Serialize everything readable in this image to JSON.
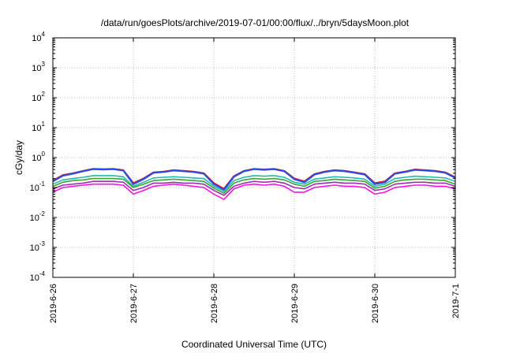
{
  "chart_data": {
    "type": "line",
    "title": "/data/run/goesPlots/archive/2019-07-01/00:00/flux/../bryn/5daysMoon.plot",
    "xlabel": "Coordinated Universal Time (UTC)",
    "ylabel": "cGy/day",
    "y_scale": "log",
    "ylim": [
      0.0001,
      10000
    ],
    "y_ticks": [
      {
        "value": 0.0001,
        "base": "10",
        "exp": "-4"
      },
      {
        "value": 0.001,
        "base": "10",
        "exp": "-3"
      },
      {
        "value": 0.01,
        "base": "10",
        "exp": "-2"
      },
      {
        "value": 0.1,
        "base": "10",
        "exp": "-1"
      },
      {
        "value": 1,
        "base": "10",
        "exp": "0"
      },
      {
        "value": 10,
        "base": "10",
        "exp": "1"
      },
      {
        "value": 100,
        "base": "10",
        "exp": "2"
      },
      {
        "value": 1000,
        "base": "10",
        "exp": "3"
      },
      {
        "value": 10000,
        "base": "10",
        "exp": "4"
      }
    ],
    "xlim": [
      "2019-06-26",
      "2019-07-01"
    ],
    "x_ticks": [
      "2019-6-26",
      "2019-6-27",
      "2019-6-28",
      "2019-6-29",
      "2019-6-30",
      "2019-7-1"
    ],
    "grid": true,
    "x": [
      "2019-06-26 00:00",
      "2019-06-26 03:00",
      "2019-06-26 06:00",
      "2019-06-26 09:00",
      "2019-06-26 12:00",
      "2019-06-26 15:00",
      "2019-06-26 18:00",
      "2019-06-26 21:00",
      "2019-06-27 00:00",
      "2019-06-27 03:00",
      "2019-06-27 06:00",
      "2019-06-27 09:00",
      "2019-06-27 12:00",
      "2019-06-27 15:00",
      "2019-06-27 18:00",
      "2019-06-27 21:00",
      "2019-06-28 00:00",
      "2019-06-28 03:00",
      "2019-06-28 06:00",
      "2019-06-28 09:00",
      "2019-06-28 12:00",
      "2019-06-28 15:00",
      "2019-06-28 18:00",
      "2019-06-28 21:00",
      "2019-06-29 00:00",
      "2019-06-29 03:00",
      "2019-06-29 06:00",
      "2019-06-29 09:00",
      "2019-06-29 12:00",
      "2019-06-29 15:00",
      "2019-06-29 18:00",
      "2019-06-29 21:00",
      "2019-06-30 00:00",
      "2019-06-30 03:00",
      "2019-06-30 06:00",
      "2019-06-30 09:00",
      "2019-06-30 12:00",
      "2019-06-30 15:00",
      "2019-06-30 18:00",
      "2019-06-30 21:00",
      "2019-07-01 00:00"
    ],
    "series": [
      {
        "color": "#e8141c",
        "values": [
          0.17,
          0.26,
          0.3,
          0.36,
          0.42,
          0.41,
          0.42,
          0.38,
          0.14,
          0.2,
          0.32,
          0.34,
          0.38,
          0.36,
          0.34,
          0.3,
          0.14,
          0.09,
          0.24,
          0.36,
          0.42,
          0.4,
          0.42,
          0.36,
          0.2,
          0.16,
          0.28,
          0.34,
          0.38,
          0.36,
          0.32,
          0.28,
          0.14,
          0.16,
          0.3,
          0.34,
          0.4,
          0.38,
          0.36,
          0.32,
          0.22
        ]
      },
      {
        "color": "#2a4be6",
        "values": [
          0.16,
          0.25,
          0.29,
          0.35,
          0.41,
          0.4,
          0.41,
          0.37,
          0.13,
          0.19,
          0.31,
          0.33,
          0.37,
          0.35,
          0.33,
          0.29,
          0.13,
          0.085,
          0.23,
          0.35,
          0.41,
          0.39,
          0.41,
          0.35,
          0.19,
          0.15,
          0.27,
          0.33,
          0.37,
          0.35,
          0.31,
          0.27,
          0.13,
          0.15,
          0.29,
          0.33,
          0.39,
          0.37,
          0.35,
          0.31,
          0.21
        ]
      },
      {
        "color": "#22b8b0",
        "values": [
          0.13,
          0.18,
          0.2,
          0.22,
          0.25,
          0.25,
          0.25,
          0.23,
          0.11,
          0.15,
          0.21,
          0.22,
          0.23,
          0.22,
          0.21,
          0.2,
          0.11,
          0.075,
          0.17,
          0.22,
          0.25,
          0.24,
          0.25,
          0.22,
          0.15,
          0.13,
          0.19,
          0.21,
          0.23,
          0.22,
          0.21,
          0.19,
          0.11,
          0.13,
          0.2,
          0.22,
          0.24,
          0.23,
          0.22,
          0.21,
          0.16
        ]
      },
      {
        "color": "#3aa52e",
        "values": [
          0.11,
          0.15,
          0.17,
          0.18,
          0.2,
          0.2,
          0.2,
          0.19,
          0.1,
          0.13,
          0.17,
          0.18,
          0.19,
          0.18,
          0.17,
          0.16,
          0.095,
          0.065,
          0.14,
          0.18,
          0.2,
          0.19,
          0.2,
          0.18,
          0.13,
          0.11,
          0.16,
          0.17,
          0.19,
          0.18,
          0.17,
          0.16,
          0.095,
          0.11,
          0.16,
          0.18,
          0.19,
          0.19,
          0.18,
          0.17,
          0.13
        ]
      },
      {
        "color": "#9a2fb2",
        "values": [
          0.09,
          0.12,
          0.13,
          0.14,
          0.16,
          0.16,
          0.16,
          0.15,
          0.08,
          0.1,
          0.14,
          0.14,
          0.15,
          0.14,
          0.14,
          0.13,
          0.08,
          0.055,
          0.11,
          0.14,
          0.16,
          0.15,
          0.16,
          0.14,
          0.1,
          0.09,
          0.13,
          0.14,
          0.15,
          0.14,
          0.14,
          0.13,
          0.08,
          0.09,
          0.13,
          0.14,
          0.15,
          0.15,
          0.14,
          0.14,
          0.11
        ]
      },
      {
        "color": "#f015e6",
        "values": [
          0.07,
          0.1,
          0.11,
          0.12,
          0.13,
          0.13,
          0.13,
          0.12,
          0.06,
          0.08,
          0.11,
          0.12,
          0.13,
          0.12,
          0.11,
          0.1,
          0.06,
          0.04,
          0.09,
          0.12,
          0.13,
          0.12,
          0.13,
          0.11,
          0.07,
          0.07,
          0.1,
          0.11,
          0.12,
          0.11,
          0.11,
          0.1,
          0.06,
          0.07,
          0.1,
          0.11,
          0.12,
          0.12,
          0.11,
          0.11,
          0.09
        ]
      }
    ]
  }
}
